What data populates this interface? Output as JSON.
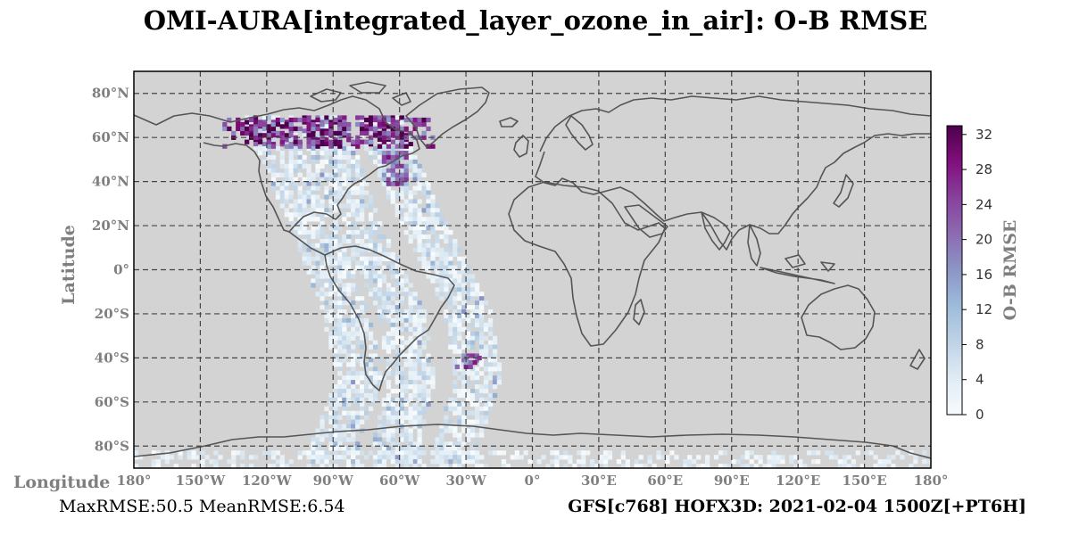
{
  "title": "OMI-AURA[integrated_layer_ozone_in_air]: O-B RMSE",
  "map": {
    "ylabel": "Latitude",
    "xlabel": "Longitude",
    "x_ticks": [
      {
        "lon": -180,
        "label": "180°"
      },
      {
        "lon": -150,
        "label": "150°W"
      },
      {
        "lon": -120,
        "label": "120°W"
      },
      {
        "lon": -90,
        "label": "90°W"
      },
      {
        "lon": -60,
        "label": "60°W"
      },
      {
        "lon": -30,
        "label": "30°W"
      },
      {
        "lon": 0,
        "label": "0°"
      },
      {
        "lon": 30,
        "label": "30°E"
      },
      {
        "lon": 60,
        "label": "60°E"
      },
      {
        "lon": 90,
        "label": "90°E"
      },
      {
        "lon": 120,
        "label": "120°E"
      },
      {
        "lon": 150,
        "label": "150°E"
      },
      {
        "lon": 180,
        "label": "180°"
      }
    ],
    "y_ticks": [
      {
        "lat": 80,
        "label": "80°N"
      },
      {
        "lat": 60,
        "label": "60°N"
      },
      {
        "lat": 40,
        "label": "40°N"
      },
      {
        "lat": 20,
        "label": "20°N"
      },
      {
        "lat": 0,
        "label": "0°"
      },
      {
        "lat": -20,
        "label": "20°S"
      },
      {
        "lat": -40,
        "label": "40°S"
      },
      {
        "lat": -60,
        "label": "60°S"
      },
      {
        "lat": -80,
        "label": "80°S"
      }
    ],
    "lon_range": [
      -180,
      180
    ],
    "lat_range": [
      -90,
      90
    ],
    "grid": true,
    "background_color": "#d3d3d3",
    "coastline_color": "#555555"
  },
  "colorbar": {
    "label": "O-B RMSE",
    "range": [
      0,
      33
    ],
    "ticks": [
      {
        "value": 0,
        "label": "0"
      },
      {
        "value": 4,
        "label": "4"
      },
      {
        "value": 8,
        "label": "8"
      },
      {
        "value": 12,
        "label": "12"
      },
      {
        "value": 16,
        "label": "16"
      },
      {
        "value": 20,
        "label": "20"
      },
      {
        "value": 24,
        "label": "24"
      },
      {
        "value": 28,
        "label": "28"
      },
      {
        "value": 32,
        "label": "32"
      }
    ],
    "colors": [
      "#f7fbfd",
      "#e0ecf4",
      "#bfd3e6",
      "#9ebcda",
      "#8c96c6",
      "#8c6bb1",
      "#88419d",
      "#810f7c",
      "#4d004b"
    ]
  },
  "chart_data": {
    "type": "heatmap",
    "title": "OMI-AURA[integrated_layer_ozone_in_air]: O-B RMSE",
    "xlabel": "Longitude",
    "ylabel": "Latitude",
    "value_label": "O-B RMSE",
    "xlim": [
      -180,
      180
    ],
    "ylim": [
      -90,
      90
    ],
    "vlim": [
      0,
      33
    ],
    "swaths": [
      {
        "lon_at_lat": [
          [
            -120,
            65
          ],
          [
            -100,
            20
          ],
          [
            -85,
            -20
          ],
          [
            -78,
            -50
          ],
          [
            -90,
            -80
          ]
        ],
        "width_deg": 20
      },
      {
        "lon_at_lat": [
          [
            -95,
            65
          ],
          [
            -80,
            20
          ],
          [
            -60,
            -20
          ],
          [
            -55,
            -50
          ],
          [
            -62,
            -80
          ]
        ],
        "width_deg": 20
      },
      {
        "lon_at_lat": [
          [
            -70,
            65
          ],
          [
            -50,
            20
          ],
          [
            -30,
            -20
          ],
          [
            -25,
            -50
          ],
          [
            -35,
            -80
          ]
        ],
        "width_deg": 20
      }
    ],
    "high_regions": [
      {
        "lon": [
          -140,
          -45
        ],
        "lat": [
          55,
          68
        ],
        "value": 30
      },
      {
        "lon": [
          -68,
          -58
        ],
        "lat": [
          38,
          52
        ],
        "value": 24
      },
      {
        "lon": [
          -35,
          -25
        ],
        "lat": [
          -45,
          -40
        ],
        "value": 24
      }
    ],
    "antarctic_band": {
      "lon": [
        -180,
        180
      ],
      "lat": [
        -90,
        -82
      ],
      "value": 3
    },
    "stats": {
      "max_rmse": 50.5,
      "mean_rmse": 6.54
    }
  },
  "footer": {
    "stats": "MaxRMSE:50.5 MeanRMSE:6.54",
    "run": "GFS[c768] HOFX3D: 2021-02-04 1500Z[+PT6H]"
  }
}
